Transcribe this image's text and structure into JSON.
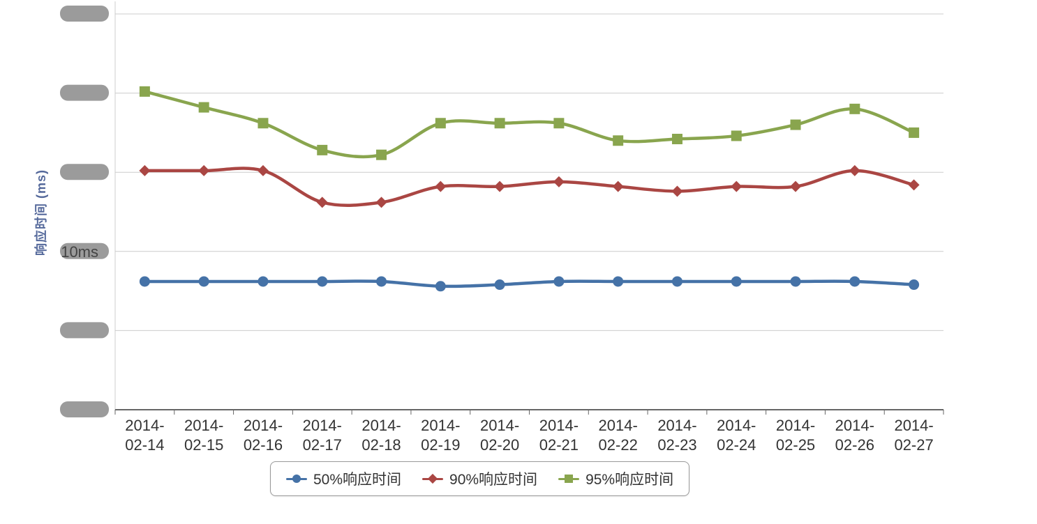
{
  "colors": {
    "axis_title": "#55699b",
    "axis_label": "#333333",
    "gridline": "#cccccc",
    "axis_line": "#666666",
    "redaction_blob": "#9b9b9b",
    "legend_border": "#999999",
    "legend_text": "#333333"
  },
  "y_axis": {
    "title": "响应时间 (ms)",
    "visible_tick_label": "10ms",
    "ticks": [
      {
        "value": 0,
        "label": "",
        "blob": true
      },
      {
        "value": 5,
        "label": "",
        "blob": true
      },
      {
        "value": 10,
        "label": "10ms",
        "blob": true
      },
      {
        "value": 15,
        "label": "",
        "blob": true
      },
      {
        "value": 20,
        "label": "",
        "blob": true
      },
      {
        "value": 25,
        "label": "",
        "blob": true
      }
    ]
  },
  "chart_data": {
    "type": "line",
    "title": "",
    "xlabel": "",
    "ylabel": "响应时间 (ms)",
    "ylim": [
      0,
      25
    ],
    "y_tick_interval": 5,
    "grid": true,
    "legend_position": "bottom",
    "categories": [
      "2014-02-14",
      "2014-02-15",
      "2014-02-16",
      "2014-02-17",
      "2014-02-18",
      "2014-02-19",
      "2014-02-20",
      "2014-02-21",
      "2014-02-22",
      "2014-02-23",
      "2014-02-24",
      "2014-02-25",
      "2014-02-26",
      "2014-02-27"
    ],
    "series": [
      {
        "name": "50%响应时间",
        "color": "#4572A7",
        "marker": "circle",
        "values": [
          8.1,
          8.1,
          8.1,
          8.1,
          8.1,
          7.8,
          7.9,
          8.1,
          8.1,
          8.1,
          8.1,
          8.1,
          8.1,
          7.9
        ]
      },
      {
        "name": "90%响应时间",
        "color": "#AA4643",
        "marker": "diamond",
        "values": [
          15.1,
          15.1,
          15.1,
          13.1,
          13.1,
          14.1,
          14.1,
          14.4,
          14.1,
          13.8,
          14.1,
          14.1,
          15.1,
          14.2
        ]
      },
      {
        "name": "95%响应时间",
        "color": "#89A54E",
        "marker": "square",
        "values": [
          20.1,
          19.1,
          18.1,
          16.4,
          16.1,
          18.1,
          18.1,
          18.1,
          17.0,
          17.1,
          17.3,
          18.0,
          19.0,
          17.5
        ]
      }
    ]
  }
}
